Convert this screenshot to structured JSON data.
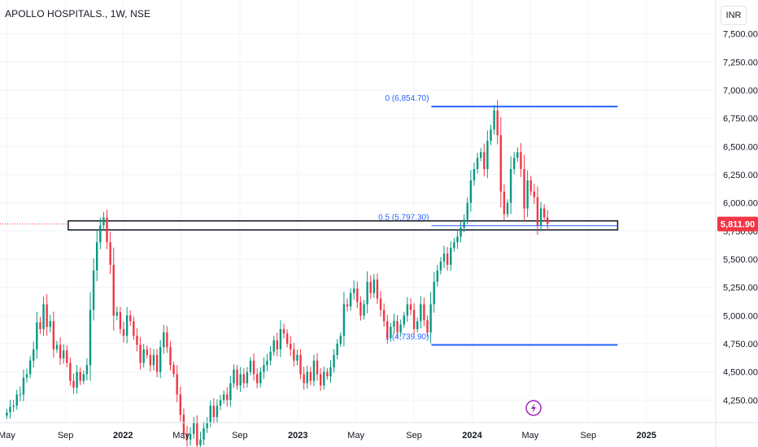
{
  "header": {
    "symbol_title": "APOLLO HOSPITALS., 1W, NSE"
  },
  "scale_button": {
    "label": "INR"
  },
  "colors": {
    "up": "#089981",
    "down": "#f23645",
    "fib": "#2962ff",
    "grid": "#f0f3fa",
    "text": "#131722",
    "price_label": "#f23645",
    "badge": "#9c27b0"
  },
  "chart_data": {
    "type": "candlestick",
    "title": "APOLLO HOSPITALS., 1W, NSE",
    "ylim": [
      4050,
      7800
    ],
    "y_ticks": [
      {
        "value": 7500,
        "label": "7,500.00"
      },
      {
        "value": 7250,
        "label": "7,250.00"
      },
      {
        "value": 7000,
        "label": "7,000.00"
      },
      {
        "value": 6750,
        "label": "6,750.00"
      },
      {
        "value": 6500,
        "label": "6,500.00"
      },
      {
        "value": 6250,
        "label": "6,250.00"
      },
      {
        "value": 6000,
        "label": "6,000.00"
      },
      {
        "value": 5750,
        "label": "5,750.00"
      },
      {
        "value": 5500,
        "label": "5,500.00"
      },
      {
        "value": 5250,
        "label": "5,250.00"
      },
      {
        "value": 5000,
        "label": "5,000.00"
      },
      {
        "value": 4750,
        "label": "4,750.00"
      },
      {
        "value": 4500,
        "label": "4,500.00"
      },
      {
        "value": 4250,
        "label": "4,250.00"
      }
    ],
    "x_ticks": [
      {
        "t": 0,
        "label": "May",
        "bold": false
      },
      {
        "t": 17.6,
        "label": "Sep",
        "bold": false
      },
      {
        "t": 34.8,
        "label": "2022",
        "bold": true
      },
      {
        "t": 52.2,
        "label": "May",
        "bold": false
      },
      {
        "t": 69.8,
        "label": "Sep",
        "bold": false
      },
      {
        "t": 87.2,
        "label": "2023",
        "bold": true
      },
      {
        "t": 104.6,
        "label": "May",
        "bold": false
      },
      {
        "t": 122.0,
        "label": "Sep",
        "bold": false
      },
      {
        "t": 139.4,
        "label": "2024",
        "bold": true
      },
      {
        "t": 156.8,
        "label": "May",
        "bold": false
      },
      {
        "t": 174.2,
        "label": "Sep",
        "bold": false
      },
      {
        "t": 191.6,
        "label": "2025",
        "bold": true
      }
    ],
    "last_price": {
      "value": 5811.9,
      "label": "5,811.90"
    },
    "fib_levels": [
      {
        "level": "0",
        "value": 6854.7,
        "label": "0 (6,854.70)"
      },
      {
        "level": "0.5",
        "value": 5797.3,
        "label": "0.5 (5,797.30)"
      },
      {
        "level": "1",
        "value": 4739.9,
        "label": "1 (4,739.90)"
      }
    ],
    "fib_range_t": [
      127.2,
      183.0
    ],
    "resistance_zone": {
      "low": 5760,
      "high": 5840,
      "t_start": 18.4,
      "t_end": 183.0
    },
    "badge_t": 157.8,
    "badge_value": 4180,
    "closes": [
      4140,
      4190,
      4200,
      4300,
      4300,
      4450,
      4480,
      4600,
      4700,
      4940,
      4880,
      5100,
      4900,
      4950,
      4700,
      4740,
      4620,
      4690,
      4580,
      4420,
      4360,
      4500,
      4420,
      4480,
      4560,
      5050,
      5400,
      5650,
      5800,
      5870,
      5650,
      5450,
      5000,
      5030,
      4880,
      4820,
      5000,
      4950,
      4820,
      4740,
      4580,
      4700,
      4650,
      4560,
      4650,
      4500,
      4720,
      4850,
      4720,
      4560,
      4480,
      4300,
      4120,
      3950,
      3900,
      3950,
      4050,
      3850,
      3900,
      4000,
      4050,
      4200,
      4100,
      4200,
      4250,
      4300,
      4250,
      4400,
      4520,
      4380,
      4480,
      4400,
      4500,
      4600,
      4480,
      4400,
      4500,
      4560,
      4600,
      4680,
      4780,
      4700,
      4880,
      4840,
      4750,
      4700,
      4600,
      4650,
      4480,
      4400,
      4500,
      4420,
      4600,
      4480,
      4380,
      4500,
      4460,
      4540,
      4650,
      4750,
      4820,
      5100,
      5080,
      5200,
      5240,
      5120,
      5000,
      5100,
      5300,
      5200,
      5320,
      5150,
      5050,
      4950,
      4800,
      4900,
      4950,
      4850,
      4920,
      5000,
      5100,
      5050,
      4880,
      4950,
      5100,
      4960,
      4850,
      5100,
      5300,
      5400,
      5480,
      5550,
      5450,
      5600,
      5650,
      5700,
      5780,
      5850,
      6000,
      6200,
      6300,
      6400,
      6450,
      6300,
      6550,
      6650,
      6820,
      6600,
      6100,
      5900,
      6000,
      6300,
      6400,
      6450,
      6300,
      5950,
      6200,
      6100,
      6050,
      5800,
      5950,
      5870,
      5811.9
    ]
  }
}
